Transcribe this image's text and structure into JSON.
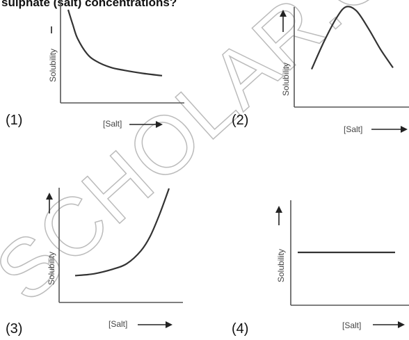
{
  "question_text": "sulphate (salt) concentrations?",
  "watermark_text": "SCHOLAR.C",
  "chart_data": [
    {
      "option": "(1)",
      "type": "line",
      "shape": "decreasing",
      "xlabel": "[Salt]",
      "ylabel": "Solubility",
      "x": [
        0,
        0.05,
        0.1,
        0.2,
        0.3,
        0.45,
        0.6,
        0.8,
        1.0
      ],
      "y": [
        1.0,
        0.8,
        0.62,
        0.42,
        0.32,
        0.24,
        0.2,
        0.16,
        0.13
      ]
    },
    {
      "option": "(2)",
      "type": "line",
      "shape": "rise-then-fall",
      "xlabel": "[Salt]",
      "ylabel": "Solubility",
      "x": [
        0,
        0.15,
        0.3,
        0.42,
        0.55,
        0.7,
        0.85,
        1.0
      ],
      "y": [
        0.2,
        0.55,
        0.85,
        1.0,
        0.95,
        0.72,
        0.45,
        0.22
      ]
    },
    {
      "option": "(3)",
      "type": "line",
      "shape": "increasing",
      "xlabel": "[Salt]",
      "ylabel": "Solubility",
      "x": [
        0,
        0.2,
        0.4,
        0.55,
        0.7,
        0.8,
        0.9,
        1.0
      ],
      "y": [
        0.05,
        0.07,
        0.12,
        0.18,
        0.32,
        0.48,
        0.72,
        1.0
      ]
    },
    {
      "option": "(4)",
      "type": "line",
      "shape": "constant",
      "xlabel": "[Salt]",
      "ylabel": "Solubility",
      "x": [
        0,
        1.0
      ],
      "y": [
        0.5,
        0.5
      ]
    }
  ]
}
